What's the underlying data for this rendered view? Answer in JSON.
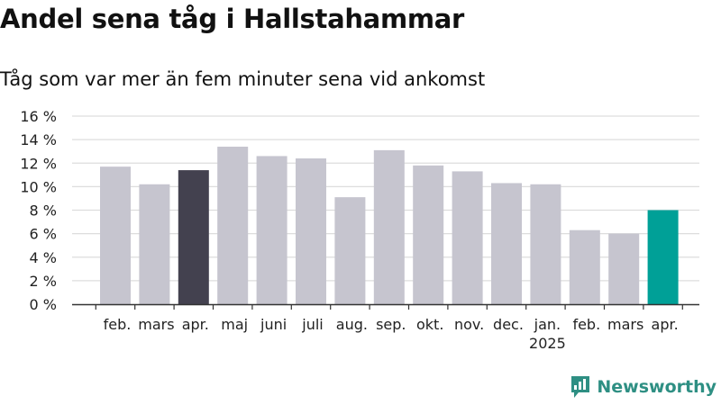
{
  "header": {
    "title": "Andel sena tåg i Hallstahammar",
    "subtitle": "Tåg som var mer än fem minuter sena vid ankomst"
  },
  "brand": {
    "name": "Newsworthy",
    "color": "#2e8f83"
  },
  "colors": {
    "default_bar": "#c6c5cf",
    "highlight_bar": "#43414f",
    "latest_bar": "#00a097",
    "grid": "#dddddd",
    "axis": "#333333"
  },
  "chart_data": {
    "type": "bar",
    "categories": [
      "feb.",
      "mars",
      "apr.",
      "maj",
      "juni",
      "juli",
      "aug.",
      "sep.",
      "okt.",
      "nov.",
      "dec.",
      "jan.",
      "feb.",
      "mars",
      "apr."
    ],
    "year_labels": [
      {
        "index": 11,
        "label": "2025"
      }
    ],
    "values": [
      11.7,
      10.2,
      11.4,
      13.4,
      12.6,
      12.4,
      9.1,
      13.1,
      11.8,
      11.3,
      10.3,
      10.2,
      6.3,
      6.0,
      8.0
    ],
    "bar_colors": [
      "#c6c5cf",
      "#c6c5cf",
      "#43414f",
      "#c6c5cf",
      "#c6c5cf",
      "#c6c5cf",
      "#c6c5cf",
      "#c6c5cf",
      "#c6c5cf",
      "#c6c5cf",
      "#c6c5cf",
      "#c6c5cf",
      "#c6c5cf",
      "#c6c5cf",
      "#00a097"
    ],
    "y_ticks": [
      "0 %",
      "2 %",
      "4 %",
      "6 %",
      "8 %",
      "10 %",
      "12 %",
      "14 %",
      "16 %"
    ],
    "ylim": [
      0,
      16
    ],
    "grid": true
  }
}
